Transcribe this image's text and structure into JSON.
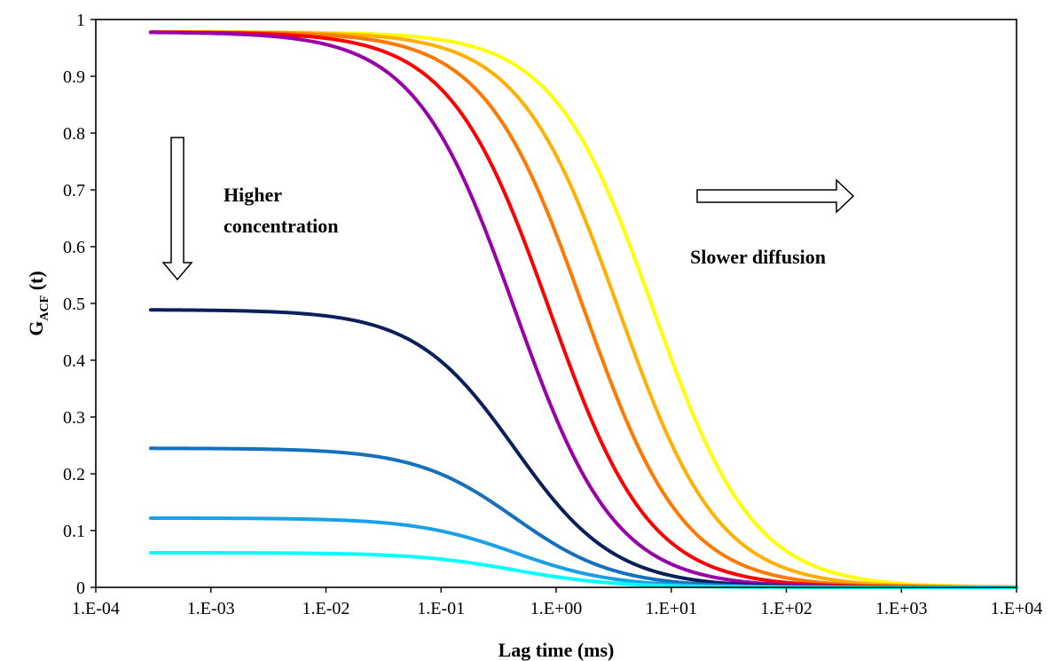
{
  "chart_data": {
    "type": "line",
    "x_scale": "log",
    "xlabel": "Lag time (ms)",
    "ylabel": {
      "main": "G",
      "subscript": "ACF",
      "suffix": " (t)"
    },
    "xlim": [
      0.0001,
      10000
    ],
    "ylim": [
      0,
      1
    ],
    "x_ticks": [
      "1.E-04",
      "1.E-03",
      "1.E-02",
      "1.E-01",
      "1.E+00",
      "1.E+01",
      "1.E+02",
      "1.E+03",
      "1.E+04"
    ],
    "y_ticks": [
      "0",
      "0.1",
      "0.2",
      "0.3",
      "0.4",
      "0.5",
      "0.6",
      "0.7",
      "0.8",
      "0.9",
      "1"
    ],
    "grid": false,
    "legend": "none",
    "x_start": 0.0003,
    "series": [
      {
        "color": "#FFFF00",
        "g0": 0.978,
        "tau": 7.0
      },
      {
        "color": "#FFB000",
        "g0": 0.978,
        "tau": 3.5
      },
      {
        "color": "#FF7800",
        "g0": 0.978,
        "tau": 1.75
      },
      {
        "color": "#FF0000",
        "g0": 0.978,
        "tau": 0.875
      },
      {
        "color": "#9900AA",
        "g0": 0.978,
        "tau": 0.4375
      },
      {
        "color": "#0A1F5C",
        "g0": 0.489,
        "tau": 0.4375
      },
      {
        "color": "#1570BE",
        "g0": 0.245,
        "tau": 0.4375
      },
      {
        "color": "#1AA0E6",
        "g0": 0.122,
        "tau": 0.4375
      },
      {
        "color": "#00FFFF",
        "g0": 0.061,
        "tau": 0.4375
      }
    ],
    "annotations": [
      {
        "lines": [
          "Higher",
          "concentration"
        ],
        "arrow": "down"
      },
      {
        "lines": [
          "Slower diffusion"
        ],
        "arrow": "right"
      }
    ]
  }
}
